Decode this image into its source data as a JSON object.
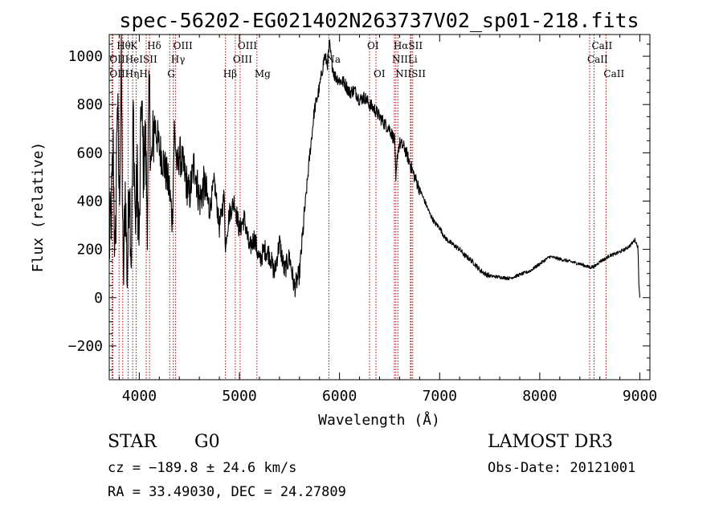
{
  "chart_data": {
    "type": "line",
    "title": "spec-56202-EG021402N263737V02_sp01-218.fits",
    "xlabel": "Wavelength (Å)",
    "ylabel": "Flux (relative)",
    "xlim": [
      3700,
      9100
    ],
    "ylim": [
      -340,
      1090
    ],
    "x_ticks": [
      4000,
      5000,
      6000,
      7000,
      8000,
      9000
    ],
    "x_tick_labels": [
      "4000",
      "5000",
      "6000",
      "7000",
      "8000",
      "9000"
    ],
    "y_ticks": [
      -200,
      0,
      200,
      400,
      600,
      800,
      1000
    ],
    "y_tick_labels": [
      "−200",
      "0",
      "200",
      "400",
      "600",
      "800",
      "1000"
    ],
    "grid": false,
    "series": [
      {
        "name": "spectrum",
        "x": [
          3700,
          3720,
          3740,
          3760,
          3780,
          3800,
          3820,
          3840,
          3860,
          3880,
          3900,
          3920,
          3940,
          3960,
          3980,
          4000,
          4020,
          4040,
          4060,
          4080,
          4100,
          4120,
          4150,
          4200,
          4250,
          4300,
          4330,
          4350,
          4380,
          4400,
          4450,
          4500,
          4550,
          4600,
          4650,
          4700,
          4750,
          4800,
          4850,
          4861,
          4870,
          4900,
          4950,
          5000,
          5050,
          5100,
          5150,
          5200,
          5250,
          5300,
          5350,
          5400,
          5450,
          5500,
          5550,
          5600,
          5650,
          5700,
          5750,
          5800,
          5850,
          5880,
          5900,
          5920,
          5950,
          6000,
          6050,
          6100,
          6150,
          6200,
          6250,
          6300,
          6350,
          6400,
          6450,
          6500,
          6550,
          6563,
          6580,
          6600,
          6650,
          6700,
          6750,
          6800,
          6850,
          6900,
          6950,
          7000,
          7050,
          7100,
          7150,
          7200,
          7250,
          7300,
          7350,
          7400,
          7450,
          7500,
          7600,
          7700,
          7800,
          7900,
          8000,
          8100,
          8200,
          8300,
          8400,
          8500,
          8550,
          8600,
          8650,
          8700,
          8750,
          8800,
          8850,
          8900,
          8950,
          8980,
          8990,
          9000
        ],
        "y": [
          200,
          350,
          600,
          100,
          860,
          400,
          950,
          50,
          450,
          80,
          520,
          150,
          780,
          300,
          500,
          200,
          840,
          550,
          650,
          360,
          860,
          520,
          730,
          620,
          550,
          450,
          320,
          700,
          520,
          600,
          520,
          420,
          560,
          400,
          470,
          360,
          480,
          290,
          430,
          180,
          260,
          350,
          400,
          280,
          330,
          200,
          250,
          150,
          200,
          180,
          100,
          230,
          110,
          170,
          40,
          100,
          350,
          580,
          780,
          870,
          1000,
          970,
          1050,
          980,
          920,
          900,
          890,
          850,
          860,
          820,
          830,
          800,
          780,
          750,
          720,
          700,
          650,
          480,
          600,
          640,
          620,
          560,
          500,
          450,
          400,
          350,
          310,
          290,
          250,
          230,
          215,
          200,
          175,
          160,
          140,
          115,
          100,
          90,
          85,
          80,
          95,
          110,
          140,
          170,
          160,
          150,
          140,
          125,
          130,
          150,
          160,
          175,
          180,
          190,
          200,
          215,
          240,
          210,
          60,
          0
        ],
        "smooth": true
      }
    ],
    "lines": [
      {
        "label": "Hθ",
        "x": 3798
      },
      {
        "label": "OII",
        "x": 3727
      },
      {
        "label": "CaII",
        "x": 3736
      },
      {
        "label": "Hη",
        "x": 3835
      },
      {
        "label": "HeI",
        "x": 3889
      },
      {
        "label": "K",
        "x": 3934
      },
      {
        "label": "H",
        "x": 3968
      },
      {
        "label": "SII",
        "x": 4069
      },
      {
        "label": "Hδ",
        "x": 4102
      },
      {
        "label": "OIII",
        "x": 4363
      },
      {
        "label": "Hγ",
        "x": 4340
      },
      {
        "label": "G",
        "x": 4304
      },
      {
        "label": "Hβ",
        "x": 4861
      },
      {
        "label": "OIII",
        "x": 4959
      },
      {
        "label": "OIII",
        "x": 5007
      },
      {
        "label": "Mg",
        "x": 5175
      },
      {
        "label": "Na",
        "x": 5893
      },
      {
        "label": "OI",
        "x": 6300
      },
      {
        "label": "OI",
        "x": 6364
      },
      {
        "label": "NII",
        "x": 6548
      },
      {
        "label": "Hα",
        "x": 6563
      },
      {
        "label": "NII",
        "x": 6583
      },
      {
        "label": "Li",
        "x": 6708
      },
      {
        "label": "SII",
        "x": 6716
      },
      {
        "label": "SII",
        "x": 6731
      },
      {
        "label": "CaII",
        "x": 8498
      },
      {
        "label": "CaII",
        "x": 8542
      },
      {
        "label": "CaII",
        "x": 8662
      }
    ],
    "line_labels": [
      {
        "text": "Hθ",
        "x": 3798,
        "row": 1
      },
      {
        "text": "K",
        "x": 3934,
        "row": 1
      },
      {
        "text": "Hδ",
        "x": 4102,
        "row": 1
      },
      {
        "text": "OIII",
        "x": 4363,
        "row": 1
      },
      {
        "text": "OIII",
        "x": 5007,
        "row": 1
      },
      {
        "text": "OI",
        "x": 6300,
        "row": 1
      },
      {
        "text": "HαSII",
        "x": 6563,
        "row": 1
      },
      {
        "text": "CaII",
        "x": 8542,
        "row": 1
      },
      {
        "text": "OIIHeISII",
        "x": 3727,
        "row": 2
      },
      {
        "text": "Hγ",
        "x": 4340,
        "row": 2
      },
      {
        "text": "OIII",
        "x": 4959,
        "row": 2
      },
      {
        "text": "NII",
        "x": 6548,
        "row": 2
      },
      {
        "text": "Li",
        "x": 6708,
        "row": 2
      },
      {
        "text": "CaII",
        "x": 8498,
        "row": 2
      },
      {
        "text": "OIIHηH",
        "x": 3727,
        "row": 3
      },
      {
        "text": "G",
        "x": 4304,
        "row": 3
      },
      {
        "text": "Hβ",
        "x": 4861,
        "row": 3
      },
      {
        "text": "Mg",
        "x": 5175,
        "row": 3
      },
      {
        "text": "OI",
        "x": 6364,
        "row": 3
      },
      {
        "text": "NIISII",
        "x": 6583,
        "row": 3
      },
      {
        "text": "CaII",
        "x": 8662,
        "row": 3
      },
      {
        "text": "Na",
        "x": 5893,
        "row": 2
      }
    ]
  },
  "info": {
    "class_label": "STAR",
    "subclass": "G0",
    "survey": "LAMOST DR3",
    "redshift_line": "cz = −189.8 ± 24.6 km/s",
    "obs_date_line": "Obs-Date: 20121001",
    "coords_line": "RA =  33.49030, DEC =  24.27809"
  }
}
